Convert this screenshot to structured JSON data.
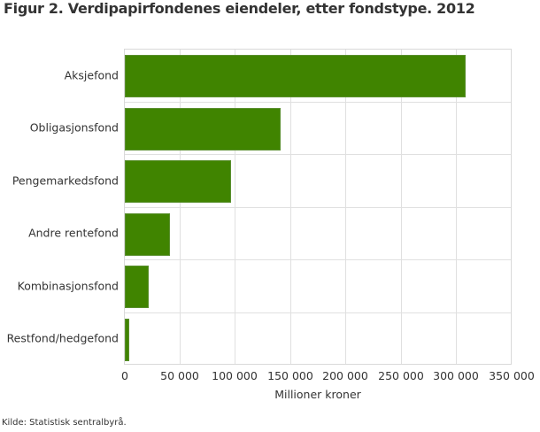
{
  "title": "Figur 2. Verdipapirfondenes eiendeler, etter fondstype. 2012",
  "source": "Kilde: Statistisk sentralbyrå.",
  "colors": {
    "bar": "#408400",
    "grid": "#e0e0e0"
  },
  "chart_data": {
    "type": "bar",
    "orientation": "horizontal",
    "title": "Figur 2. Verdipapirfondenes eiendeler, etter fondstype. 2012",
    "xlabel": "Millioner kroner",
    "ylabel": "",
    "categories": [
      "Aksjefond",
      "Obligasjonsfond",
      "Pengemarkedsfond",
      "Andre rentefond",
      "Kombinasjonsfond",
      "Restfond/hedgefond"
    ],
    "values": [
      307600,
      140600,
      95900,
      40800,
      21600,
      4000
    ],
    "xlim": [
      0,
      350000
    ],
    "xticks": [
      "0",
      "50 000",
      "100 000",
      "150 000",
      "200 000",
      "250 000",
      "300 000",
      "350 000"
    ],
    "grid": true,
    "legend": null
  }
}
